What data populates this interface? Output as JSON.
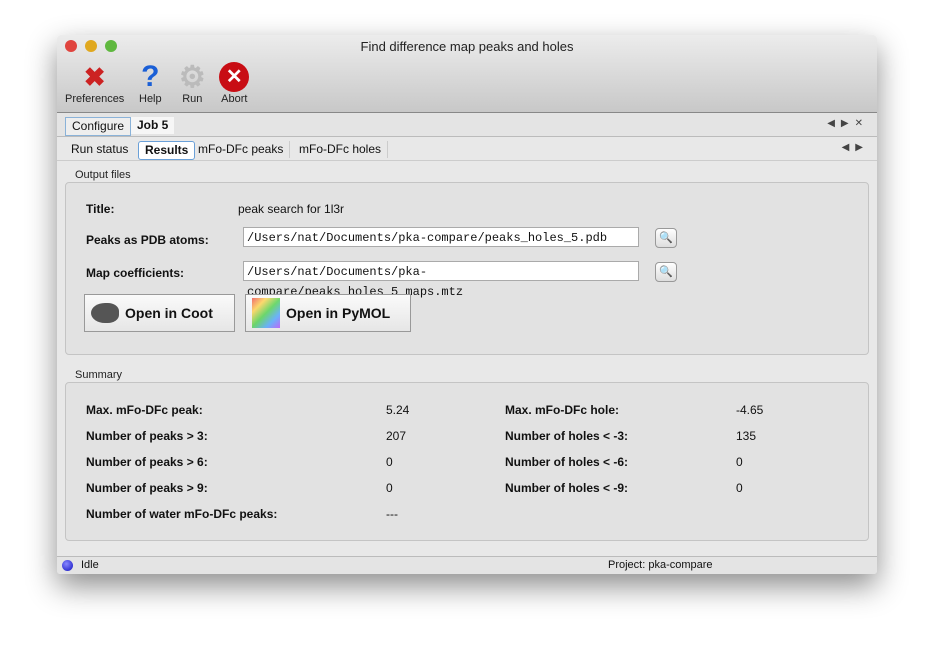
{
  "window": {
    "title": "Find difference map peaks and holes"
  },
  "toolbar": [
    {
      "label": "Preferences",
      "icon": "preferences-tools-icon"
    },
    {
      "label": "Help",
      "icon": "help-question-icon"
    },
    {
      "label": "Run",
      "icon": "gear-icon"
    },
    {
      "label": "Abort",
      "icon": "abort-stop-icon"
    }
  ],
  "tabs": [
    "Configure",
    "Job 5"
  ],
  "subtabs": [
    "Run status",
    "Results",
    "mFo-DFc peaks",
    "mFo-DFc holes"
  ],
  "output": {
    "group": "Output files",
    "title_label": "Title:",
    "title_value": "peak search for 1l3r",
    "pdb_label": "Peaks as PDB atoms:",
    "pdb_value": "/Users/nat/Documents/pka-compare/peaks_holes_5.pdb",
    "map_label": "Map coefficients:",
    "map_value": "/Users/nat/Documents/pka-compare/peaks_holes_5_maps.mtz",
    "coot": "Open in Coot",
    "pymol": "Open in PyMOL"
  },
  "summary": {
    "group": "Summary",
    "left": [
      {
        "label": "Max. mFo-DFc peak:",
        "value": "5.24"
      },
      {
        "label": "Number of peaks > 3:",
        "value": "207"
      },
      {
        "label": "Number of peaks > 6:",
        "value": "0"
      },
      {
        "label": "Number of peaks > 9:",
        "value": "0"
      },
      {
        "label": "Number of water mFo-DFc peaks:",
        "value": "---"
      }
    ],
    "right": [
      {
        "label": "Max. mFo-DFc hole:",
        "value": "-4.65"
      },
      {
        "label": "Number of holes < -3:",
        "value": "135"
      },
      {
        "label": "Number of holes < -6:",
        "value": "0"
      },
      {
        "label": "Number of holes < -9:",
        "value": "0"
      }
    ]
  },
  "status": {
    "state": "Idle",
    "project": "Project: pka-compare"
  }
}
